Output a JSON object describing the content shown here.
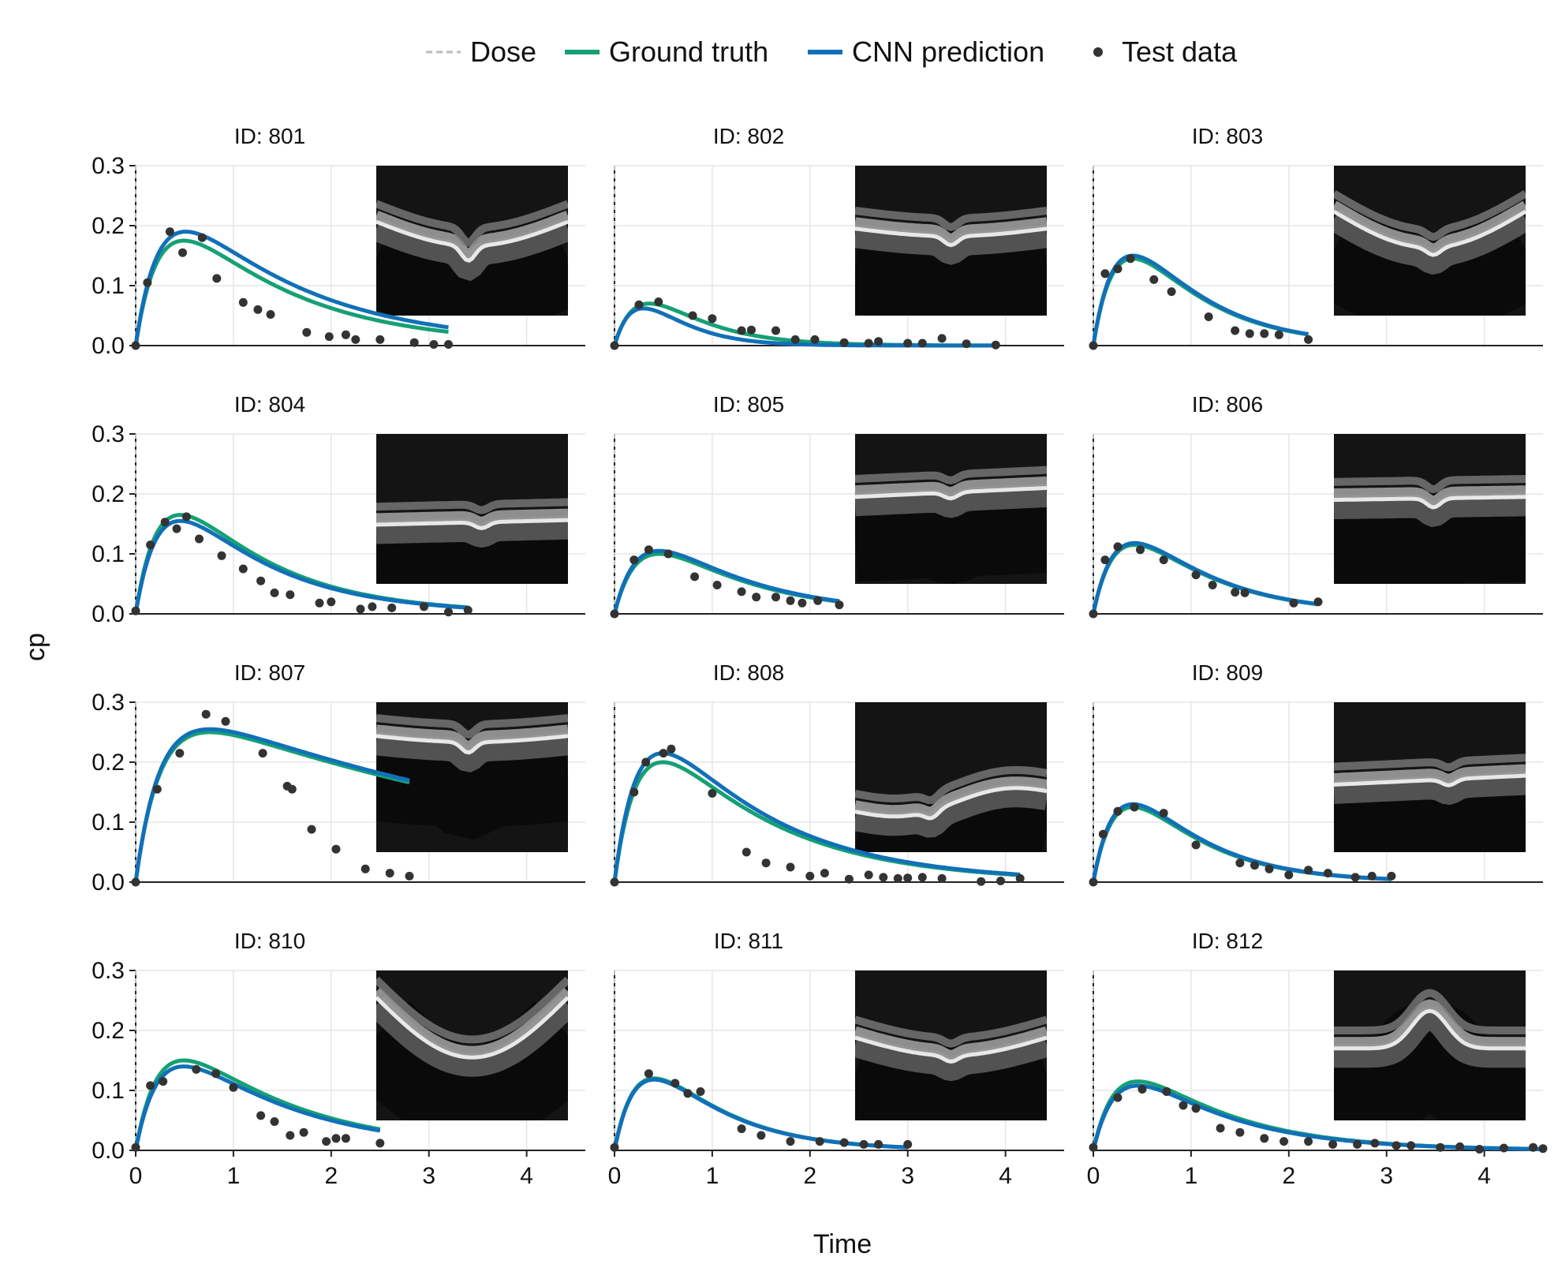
{
  "legend": {
    "items": [
      {
        "key": "dose",
        "label": "Dose",
        "color": "#bbbbbb",
        "style": "dashed"
      },
      {
        "key": "ground_truth",
        "label": "Ground truth",
        "color": "#16a075",
        "style": "line"
      },
      {
        "key": "cnn",
        "label": "CNN prediction",
        "color": "#1170b8",
        "style": "line"
      },
      {
        "key": "test",
        "label": "Test data",
        "color": "#333333",
        "style": "marker"
      }
    ]
  },
  "chart_data": {
    "type": "line",
    "xlabel": "Time",
    "ylabel": "cp",
    "xlim": [
      0,
      4.6
    ],
    "ylim": [
      0,
      0.3
    ],
    "xticks": [
      "0",
      "1",
      "2",
      "3",
      "4"
    ],
    "yticks": [
      "0.0",
      "0.1",
      "0.2",
      "0.3"
    ],
    "grid": true,
    "legend_position": "top-center",
    "panels": [
      {
        "title": "ID: 801",
        "ground_truth": {
          "peak_x": 0.5,
          "peak_y": 0.175,
          "x_end": 3.2
        },
        "cnn_prediction": {
          "peak_x": 0.52,
          "peak_y": 0.19,
          "x_end": 3.2
        },
        "test_data": [
          [
            0,
            0
          ],
          [
            0.12,
            0.105
          ],
          [
            0.35,
            0.19
          ],
          [
            0.48,
            0.155
          ],
          [
            0.68,
            0.18
          ],
          [
            0.83,
            0.112
          ],
          [
            1.1,
            0.072
          ],
          [
            1.25,
            0.06
          ],
          [
            1.38,
            0.052
          ],
          [
            1.75,
            0.022
          ],
          [
            1.98,
            0.015
          ],
          [
            2.15,
            0.018
          ],
          [
            2.25,
            0.01
          ],
          [
            2.5,
            0.01
          ],
          [
            2.85,
            0.005
          ],
          [
            3.05,
            0.002
          ],
          [
            3.2,
            0.002
          ]
        ]
      },
      {
        "title": "ID: 802",
        "ground_truth": {
          "peak_x": 0.35,
          "peak_y": 0.07,
          "x_end": 3.9
        },
        "cnn_prediction": {
          "peak_x": 0.3,
          "peak_y": 0.062,
          "x_end": 3.9
        },
        "test_data": [
          [
            0,
            0
          ],
          [
            0.25,
            0.068
          ],
          [
            0.45,
            0.073
          ],
          [
            0.8,
            0.05
          ],
          [
            1.0,
            0.045
          ],
          [
            1.3,
            0.025
          ],
          [
            1.4,
            0.026
          ],
          [
            1.65,
            0.025
          ],
          [
            1.85,
            0.01
          ],
          [
            2.05,
            0.01
          ],
          [
            2.35,
            0.005
          ],
          [
            2.6,
            0.004
          ],
          [
            2.7,
            0.007
          ],
          [
            3.0,
            0.004
          ],
          [
            3.15,
            0.004
          ],
          [
            3.35,
            0.012
          ],
          [
            3.6,
            0.003
          ],
          [
            3.9,
            0.001
          ]
        ]
      },
      {
        "title": "ID: 803",
        "ground_truth": {
          "peak_x": 0.4,
          "peak_y": 0.145,
          "x_end": 2.2
        },
        "cnn_prediction": {
          "peak_x": 0.4,
          "peak_y": 0.15,
          "x_end": 2.2
        },
        "test_data": [
          [
            0,
            0
          ],
          [
            0.12,
            0.12
          ],
          [
            0.25,
            0.128
          ],
          [
            0.38,
            0.145
          ],
          [
            0.62,
            0.11
          ],
          [
            0.8,
            0.09
          ],
          [
            1.18,
            0.048
          ],
          [
            1.45,
            0.025
          ],
          [
            1.6,
            0.02
          ],
          [
            1.75,
            0.02
          ],
          [
            1.9,
            0.018
          ],
          [
            2.2,
            0.01
          ]
        ]
      },
      {
        "title": "ID: 804",
        "ground_truth": {
          "peak_x": 0.45,
          "peak_y": 0.165,
          "x_end": 3.4
        },
        "cnn_prediction": {
          "peak_x": 0.45,
          "peak_y": 0.155,
          "x_end": 3.4
        },
        "test_data": [
          [
            0,
            0.005
          ],
          [
            0.15,
            0.115
          ],
          [
            0.3,
            0.153
          ],
          [
            0.42,
            0.142
          ],
          [
            0.52,
            0.162
          ],
          [
            0.65,
            0.125
          ],
          [
            0.88,
            0.097
          ],
          [
            1.1,
            0.075
          ],
          [
            1.28,
            0.055
          ],
          [
            1.42,
            0.035
          ],
          [
            1.58,
            0.032
          ],
          [
            1.88,
            0.018
          ],
          [
            2.0,
            0.02
          ],
          [
            2.3,
            0.008
          ],
          [
            2.42,
            0.012
          ],
          [
            2.62,
            0.01
          ],
          [
            2.95,
            0.012
          ],
          [
            3.2,
            0.003
          ],
          [
            3.4,
            0.006
          ]
        ]
      },
      {
        "title": "ID: 805",
        "ground_truth": {
          "peak_x": 0.45,
          "peak_y": 0.1,
          "x_end": 2.3
        },
        "cnn_prediction": {
          "peak_x": 0.45,
          "peak_y": 0.105,
          "x_end": 2.3
        },
        "test_data": [
          [
            0,
            0
          ],
          [
            0.2,
            0.09
          ],
          [
            0.35,
            0.107
          ],
          [
            0.55,
            0.1
          ],
          [
            0.82,
            0.062
          ],
          [
            1.05,
            0.048
          ],
          [
            1.3,
            0.037
          ],
          [
            1.45,
            0.028
          ],
          [
            1.65,
            0.028
          ],
          [
            1.8,
            0.022
          ],
          [
            1.92,
            0.018
          ],
          [
            2.08,
            0.022
          ],
          [
            2.3,
            0.015
          ]
        ]
      },
      {
        "title": "ID: 806",
        "ground_truth": {
          "peak_x": 0.42,
          "peak_y": 0.115,
          "x_end": 2.3
        },
        "cnn_prediction": {
          "peak_x": 0.42,
          "peak_y": 0.118,
          "x_end": 2.3
        },
        "test_data": [
          [
            0,
            0
          ],
          [
            0.12,
            0.09
          ],
          [
            0.25,
            0.112
          ],
          [
            0.48,
            0.107
          ],
          [
            0.72,
            0.09
          ],
          [
            1.05,
            0.065
          ],
          [
            1.22,
            0.048
          ],
          [
            1.45,
            0.036
          ],
          [
            1.55,
            0.035
          ],
          [
            2.05,
            0.018
          ],
          [
            2.3,
            0.02
          ]
        ]
      },
      {
        "title": "ID: 807",
        "ground_truth": {
          "peak_x": 0.75,
          "peak_y": 0.25,
          "x_end": 2.8
        },
        "cnn_prediction": {
          "peak_x": 0.75,
          "peak_y": 0.255,
          "x_end": 2.8
        },
        "test_data": [
          [
            0,
            0
          ],
          [
            0.22,
            0.155
          ],
          [
            0.45,
            0.215
          ],
          [
            0.72,
            0.28
          ],
          [
            0.92,
            0.268
          ],
          [
            1.3,
            0.215
          ],
          [
            1.55,
            0.16
          ],
          [
            1.6,
            0.155
          ],
          [
            1.8,
            0.088
          ],
          [
            2.05,
            0.055
          ],
          [
            2.35,
            0.022
          ],
          [
            2.6,
            0.015
          ],
          [
            2.8,
            0.01
          ]
        ]
      },
      {
        "title": "ID: 808",
        "ground_truth": {
          "peak_x": 0.5,
          "peak_y": 0.2,
          "x_end": 4.15
        },
        "cnn_prediction": {
          "peak_x": 0.5,
          "peak_y": 0.215,
          "x_end": 4.15
        },
        "test_data": [
          [
            0,
            0
          ],
          [
            0.2,
            0.15
          ],
          [
            0.32,
            0.2
          ],
          [
            0.5,
            0.215
          ],
          [
            0.58,
            0.222
          ],
          [
            1.0,
            0.148
          ],
          [
            1.35,
            0.05
          ],
          [
            1.55,
            0.032
          ],
          [
            1.8,
            0.025
          ],
          [
            2.0,
            0.01
          ],
          [
            2.15,
            0.015
          ],
          [
            2.4,
            0.005
          ],
          [
            2.6,
            0.012
          ],
          [
            2.75,
            0.008
          ],
          [
            2.9,
            0.006
          ],
          [
            3.0,
            0.007
          ],
          [
            3.15,
            0.008
          ],
          [
            3.35,
            0.006
          ],
          [
            3.75,
            0.001
          ],
          [
            3.95,
            0.002
          ],
          [
            4.15,
            0.006
          ]
        ]
      },
      {
        "title": "ID: 809",
        "ground_truth": {
          "peak_x": 0.4,
          "peak_y": 0.125,
          "x_end": 3.05
        },
        "cnn_prediction": {
          "peak_x": 0.4,
          "peak_y": 0.13,
          "x_end": 3.05
        },
        "test_data": [
          [
            0,
            0
          ],
          [
            0.1,
            0.08
          ],
          [
            0.25,
            0.118
          ],
          [
            0.42,
            0.125
          ],
          [
            0.72,
            0.115
          ],
          [
            1.05,
            0.062
          ],
          [
            1.5,
            0.032
          ],
          [
            1.65,
            0.028
          ],
          [
            1.8,
            0.022
          ],
          [
            2.0,
            0.012
          ],
          [
            2.2,
            0.02
          ],
          [
            2.4,
            0.015
          ],
          [
            2.68,
            0.008
          ],
          [
            2.85,
            0.01
          ],
          [
            3.05,
            0.01
          ]
        ]
      },
      {
        "title": "ID: 810",
        "ground_truth": {
          "peak_x": 0.5,
          "peak_y": 0.15,
          "x_end": 2.5
        },
        "cnn_prediction": {
          "peak_x": 0.5,
          "peak_y": 0.14,
          "x_end": 2.5
        },
        "test_data": [
          [
            0,
            0.005
          ],
          [
            0.15,
            0.108
          ],
          [
            0.28,
            0.115
          ],
          [
            0.62,
            0.135
          ],
          [
            0.82,
            0.128
          ],
          [
            1.0,
            0.105
          ],
          [
            1.28,
            0.058
          ],
          [
            1.42,
            0.048
          ],
          [
            1.58,
            0.025
          ],
          [
            1.72,
            0.03
          ],
          [
            1.95,
            0.015
          ],
          [
            2.05,
            0.02
          ],
          [
            2.15,
            0.02
          ],
          [
            2.5,
            0.012
          ]
        ]
      },
      {
        "title": "ID: 811",
        "ground_truth": {
          "peak_x": 0.4,
          "peak_y": 0.12,
          "x_end": 3.0
        },
        "cnn_prediction": {
          "peak_x": 0.4,
          "peak_y": 0.118,
          "x_end": 3.0
        },
        "test_data": [
          [
            0,
            0.005
          ],
          [
            0.35,
            0.128
          ],
          [
            0.62,
            0.112
          ],
          [
            0.75,
            0.095
          ],
          [
            0.88,
            0.098
          ],
          [
            1.3,
            0.036
          ],
          [
            1.5,
            0.025
          ],
          [
            1.8,
            0.015
          ],
          [
            2.1,
            0.015
          ],
          [
            2.35,
            0.013
          ],
          [
            2.55,
            0.01
          ],
          [
            2.7,
            0.01
          ],
          [
            3.0,
            0.01
          ]
        ]
      },
      {
        "title": "ID: 812",
        "ground_truth": {
          "peak_x": 0.45,
          "peak_y": 0.115,
          "x_end": 4.6
        },
        "cnn_prediction": {
          "peak_x": 0.45,
          "peak_y": 0.108,
          "x_end": 4.6
        },
        "test_data": [
          [
            0,
            0.005
          ],
          [
            0.25,
            0.088
          ],
          [
            0.5,
            0.102
          ],
          [
            0.75,
            0.098
          ],
          [
            0.92,
            0.075
          ],
          [
            1.05,
            0.07
          ],
          [
            1.3,
            0.037
          ],
          [
            1.5,
            0.03
          ],
          [
            1.75,
            0.02
          ],
          [
            1.95,
            0.015
          ],
          [
            2.2,
            0.015
          ],
          [
            2.45,
            0.01
          ],
          [
            2.7,
            0.01
          ],
          [
            2.88,
            0.012
          ],
          [
            3.1,
            0.008
          ],
          [
            3.25,
            0.008
          ],
          [
            3.55,
            0.005
          ],
          [
            3.75,
            0.006
          ],
          [
            3.95,
            0.002
          ],
          [
            4.2,
            0.004
          ],
          [
            4.5,
            0.005
          ],
          [
            4.6,
            0.003
          ]
        ]
      }
    ]
  },
  "insets": [
    {
      "scan_shape": "arc-down",
      "depth": 0.4,
      "amplitude": 0.16,
      "dip": 0.1,
      "dip_pos": 0.48
    },
    {
      "scan_shape": "arc-down",
      "depth": 0.38,
      "amplitude": 0.05,
      "dip": 0.06,
      "dip_pos": 0.5
    },
    {
      "scan_shape": "arc-down",
      "depth": 0.38,
      "amplitude": 0.24,
      "dip": 0.05,
      "dip_pos": 0.52
    },
    {
      "scan_shape": "flat",
      "depth": 0.52,
      "amplitude": 0.03,
      "dip": 0.04,
      "dip_pos": 0.55
    },
    {
      "scan_shape": "flat",
      "depth": 0.32,
      "amplitude": 0.06,
      "dip": 0.04,
      "dip_pos": 0.5
    },
    {
      "scan_shape": "flat",
      "depth": 0.36,
      "amplitude": 0.02,
      "dip": 0.06,
      "dip_pos": 0.52
    },
    {
      "scan_shape": "arc-down",
      "depth": 0.18,
      "amplitude": 0.04,
      "dip": 0.07,
      "dip_pos": 0.48
    },
    {
      "scan_shape": "slope",
      "depth": 0.6,
      "amplitude": 0.12,
      "dip": 0.05,
      "dip_pos": 0.4
    },
    {
      "scan_shape": "flat",
      "depth": 0.45,
      "amplitude": 0.06,
      "dip": 0.04,
      "dip_pos": 0.6
    },
    {
      "scan_shape": "arc-down",
      "depth": 0.35,
      "amplitude": 0.4,
      "dip": 0.0,
      "dip_pos": 0.5
    },
    {
      "scan_shape": "arc-down",
      "depth": 0.45,
      "amplitude": 0.12,
      "dip": 0.04,
      "dip_pos": 0.5
    },
    {
      "scan_shape": "bump-up",
      "depth": 0.45,
      "amplitude": 0.25,
      "dip": 0.0,
      "dip_pos": 0.5
    }
  ]
}
